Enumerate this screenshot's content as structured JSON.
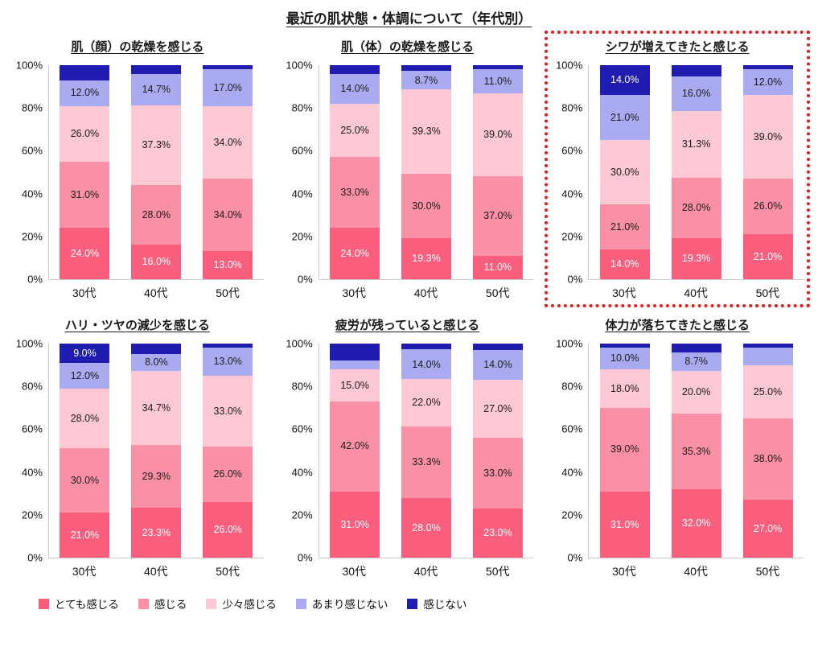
{
  "page_title": "最近の肌状態・体調について（年代別）",
  "y_ticks": [
    "100%",
    "80%",
    "60%",
    "40%",
    "20%",
    "0%"
  ],
  "legend": [
    {
      "label": "とても感じる",
      "color": "#F95F7D"
    },
    {
      "label": "感じる",
      "color": "#FA90A6"
    },
    {
      "label": "少々感じる",
      "color": "#FBC8D3"
    },
    {
      "label": "あまり感じない",
      "color": "#A9AAF0"
    },
    {
      "label": "感じない",
      "color": "#211CB0"
    }
  ],
  "chart_data": [
    {
      "type": "bar",
      "stacked": true,
      "title": "肌（顔）の乾燥を感じる",
      "highlighted": false,
      "categories": [
        "30代",
        "40代",
        "50代"
      ],
      "ylim": [
        0,
        100
      ],
      "series": [
        {
          "name": "とても感じる",
          "values": [
            24.0,
            16.0,
            13.0
          ],
          "labels": [
            "24.0%",
            "16.0%",
            "13.0%"
          ]
        },
        {
          "name": "感じる",
          "values": [
            31.0,
            28.0,
            34.0
          ],
          "labels": [
            "31.0%",
            "28.0%",
            "34.0%"
          ]
        },
        {
          "name": "少々感じる",
          "values": [
            26.0,
            37.3,
            34.0
          ],
          "labels": [
            "26.0%",
            "37.3%",
            "34.0%"
          ]
        },
        {
          "name": "あまり感じない",
          "values": [
            12.0,
            14.7,
            17.0
          ],
          "labels": [
            "12.0%",
            "14.7%",
            "17.0%"
          ]
        },
        {
          "name": "感じない",
          "values": [
            7.0,
            4.0,
            2.0
          ],
          "labels": [
            "",
            "",
            ""
          ]
        }
      ]
    },
    {
      "type": "bar",
      "stacked": true,
      "title": "肌（体）の乾燥を感じる",
      "highlighted": false,
      "categories": [
        "30代",
        "40代",
        "50代"
      ],
      "ylim": [
        0,
        100
      ],
      "series": [
        {
          "name": "とても感じる",
          "values": [
            24.0,
            19.3,
            11.0
          ],
          "labels": [
            "24.0%",
            "19.3%",
            "11.0%"
          ]
        },
        {
          "name": "感じる",
          "values": [
            33.0,
            30.0,
            37.0
          ],
          "labels": [
            "33.0%",
            "30.0%",
            "37.0%"
          ]
        },
        {
          "name": "少々感じる",
          "values": [
            25.0,
            39.3,
            39.0
          ],
          "labels": [
            "25.0%",
            "39.3%",
            "39.0%"
          ]
        },
        {
          "name": "あまり感じない",
          "values": [
            14.0,
            8.7,
            11.0
          ],
          "labels": [
            "14.0%",
            "8.7%",
            "11.0%"
          ]
        },
        {
          "name": "感じない",
          "values": [
            4.0,
            2.7,
            2.0
          ],
          "labels": [
            "",
            "",
            ""
          ]
        }
      ]
    },
    {
      "type": "bar",
      "stacked": true,
      "title": "シワが増えてきたと感じる",
      "highlighted": true,
      "categories": [
        "30代",
        "40代",
        "50代"
      ],
      "ylim": [
        0,
        100
      ],
      "series": [
        {
          "name": "とても感じる",
          "values": [
            14.0,
            19.3,
            21.0
          ],
          "labels": [
            "14.0%",
            "19.3%",
            "21.0%"
          ]
        },
        {
          "name": "感じる",
          "values": [
            21.0,
            28.0,
            26.0
          ],
          "labels": [
            "21.0%",
            "28.0%",
            "26.0%"
          ]
        },
        {
          "name": "少々感じる",
          "values": [
            30.0,
            31.3,
            39.0
          ],
          "labels": [
            "30.0%",
            "31.3%",
            "39.0%"
          ]
        },
        {
          "name": "あまり感じない",
          "values": [
            21.0,
            16.0,
            12.0
          ],
          "labels": [
            "21.0%",
            "16.0%",
            "12.0%"
          ]
        },
        {
          "name": "感じない",
          "values": [
            14.0,
            5.4,
            2.0
          ],
          "labels": [
            "14.0%",
            "",
            ""
          ]
        }
      ]
    },
    {
      "type": "bar",
      "stacked": true,
      "title": "ハリ・ツヤの減少を感じる",
      "highlighted": false,
      "categories": [
        "30代",
        "40代",
        "50代"
      ],
      "ylim": [
        0,
        100
      ],
      "series": [
        {
          "name": "とても感じる",
          "values": [
            21.0,
            23.3,
            26.0
          ],
          "labels": [
            "21.0%",
            "23.3%",
            "26.0%"
          ]
        },
        {
          "name": "感じる",
          "values": [
            30.0,
            29.3,
            26.0
          ],
          "labels": [
            "30.0%",
            "29.3%",
            "26.0%"
          ]
        },
        {
          "name": "少々感じる",
          "values": [
            28.0,
            34.7,
            33.0
          ],
          "labels": [
            "28.0%",
            "34.7%",
            "33.0%"
          ]
        },
        {
          "name": "あまり感じない",
          "values": [
            12.0,
            8.0,
            13.0
          ],
          "labels": [
            "12.0%",
            "8.0%",
            "13.0%"
          ]
        },
        {
          "name": "感じない",
          "values": [
            9.0,
            4.7,
            2.0
          ],
          "labels": [
            "9.0%",
            "",
            ""
          ]
        }
      ]
    },
    {
      "type": "bar",
      "stacked": true,
      "title": "疲労が残っていると感じる",
      "highlighted": false,
      "categories": [
        "30代",
        "40代",
        "50代"
      ],
      "ylim": [
        0,
        100
      ],
      "series": [
        {
          "name": "とても感じる",
          "values": [
            31.0,
            28.0,
            23.0
          ],
          "labels": [
            "31.0%",
            "28.0%",
            "23.0%"
          ]
        },
        {
          "name": "感じる",
          "values": [
            42.0,
            33.3,
            33.0
          ],
          "labels": [
            "42.0%",
            "33.3%",
            "33.0%"
          ]
        },
        {
          "name": "少々感じる",
          "values": [
            15.0,
            22.0,
            27.0
          ],
          "labels": [
            "15.0%",
            "22.0%",
            "27.0%"
          ]
        },
        {
          "name": "あまり感じない",
          "values": [
            4.0,
            14.0,
            14.0
          ],
          "labels": [
            "",
            "14.0%",
            "14.0%"
          ]
        },
        {
          "name": "感じない",
          "values": [
            8.0,
            2.7,
            3.0
          ],
          "labels": [
            "",
            "",
            ""
          ]
        }
      ]
    },
    {
      "type": "bar",
      "stacked": true,
      "title": "体力が落ちてきたと感じる",
      "highlighted": false,
      "categories": [
        "30代",
        "40代",
        "50代"
      ],
      "ylim": [
        0,
        100
      ],
      "series": [
        {
          "name": "とても感じる",
          "values": [
            31.0,
            32.0,
            27.0
          ],
          "labels": [
            "31.0%",
            "32.0%",
            "27.0%"
          ]
        },
        {
          "name": "感じる",
          "values": [
            39.0,
            35.3,
            38.0
          ],
          "labels": [
            "39.0%",
            "35.3%",
            "38.0%"
          ]
        },
        {
          "name": "少々感じる",
          "values": [
            18.0,
            20.0,
            25.0
          ],
          "labels": [
            "18.0%",
            "20.0%",
            "25.0%"
          ]
        },
        {
          "name": "あまり感じない",
          "values": [
            10.0,
            8.7,
            8.0
          ],
          "labels": [
            "10.0%",
            "8.7%",
            ""
          ]
        },
        {
          "name": "感じない",
          "values": [
            2.0,
            4.0,
            2.0
          ],
          "labels": [
            "",
            "",
            ""
          ]
        }
      ]
    }
  ]
}
